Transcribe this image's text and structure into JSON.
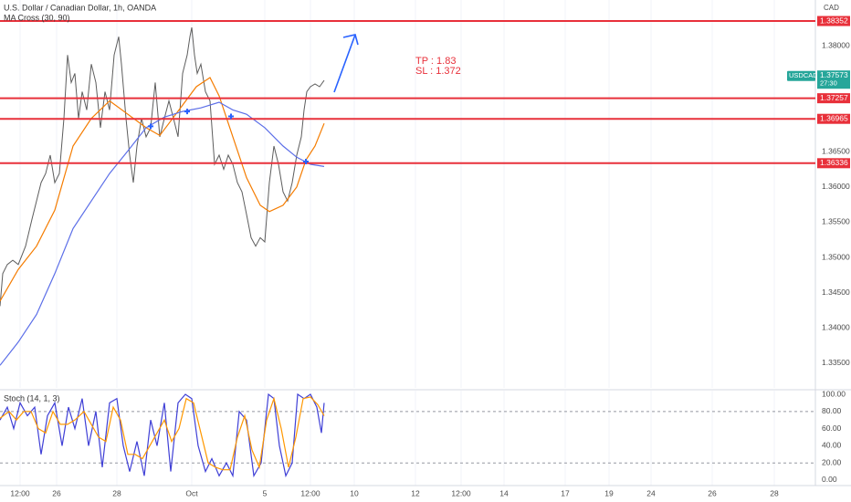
{
  "chart_data": [
    {
      "type": "line",
      "title": "U.S. Dollar / Canadian Dollar, 1h, OANDA",
      "subtitle": "MA Cross (30, 90)",
      "currency": "CAD",
      "symbol": "USDCAD",
      "last_price": 1.37573,
      "countdown": "27:30",
      "annotations": [
        "TP : 1.83",
        "SL : 1.372"
      ],
      "grid": true,
      "xlim": [
        0,
        893
      ],
      "ylim": [
        1.3315,
        1.3865
      ],
      "yticks": [
        {
          "value": 1.38,
          "label": "1.38000"
        },
        {
          "value": 1.365,
          "label": "1.36500"
        },
        {
          "value": 1.36,
          "label": "1.36000"
        },
        {
          "value": 1.355,
          "label": "1.35500"
        },
        {
          "value": 1.35,
          "label": "1.35000"
        },
        {
          "value": 1.345,
          "label": "1.34500"
        },
        {
          "value": 1.34,
          "label": "1.34000"
        },
        {
          "value": 1.335,
          "label": "1.33500"
        }
      ],
      "xticks": [
        {
          "value": 22,
          "label": "12:00"
        },
        {
          "value": 62,
          "label": "26"
        },
        {
          "value": 128,
          "label": "28"
        },
        {
          "value": 210,
          "label": "Oct"
        },
        {
          "value": 290,
          "label": "5"
        },
        {
          "value": 340,
          "label": "12:00"
        },
        {
          "value": 388,
          "label": "10"
        },
        {
          "value": 455,
          "label": "12"
        },
        {
          "value": 505,
          "label": "12:00"
        },
        {
          "value": 552,
          "label": "14"
        },
        {
          "value": 619,
          "label": "17"
        },
        {
          "value": 667,
          "label": "19"
        },
        {
          "value": 713,
          "label": "24"
        },
        {
          "value": 780,
          "label": "26"
        },
        {
          "value": 848,
          "label": "28"
        }
      ],
      "levels": {
        "color": "#e8303a",
        "values": [
          1.38352,
          1.37257,
          1.36965,
          1.36336
        ]
      },
      "series": [
        {
          "color": "#5d5d5d",
          "x": [
            0,
            3,
            8,
            14,
            20,
            28,
            35,
            40,
            45,
            50,
            55,
            60,
            65,
            70,
            74,
            78,
            82,
            86,
            90,
            95,
            100,
            105,
            110,
            115,
            120,
            125,
            130,
            133,
            138,
            142,
            146,
            150,
            155,
            160,
            165,
            170,
            175,
            180,
            185,
            190,
            195,
            200,
            205,
            208,
            210,
            213,
            216,
            220,
            225,
            230,
            235,
            240,
            245,
            250,
            255,
            260,
            265,
            270,
            275,
            280,
            285,
            290,
            295,
            300,
            305,
            310,
            315,
            320,
            325,
            330,
            333,
            336,
            340,
            345,
            350,
            355
          ],
          "values": [
            1.3431,
            1.3477,
            1.349,
            1.3496,
            1.349,
            1.3516,
            1.3554,
            1.358,
            1.3606,
            1.3619,
            1.3645,
            1.3606,
            1.3619,
            1.3697,
            1.3787,
            1.3748,
            1.3761,
            1.3697,
            1.3735,
            1.3709,
            1.3774,
            1.3748,
            1.3684,
            1.3735,
            1.3709,
            1.3787,
            1.3813,
            1.3774,
            1.3697,
            1.3645,
            1.3606,
            1.3658,
            1.3697,
            1.3671,
            1.3684,
            1.3748,
            1.3671,
            1.3697,
            1.3722,
            1.3697,
            1.3671,
            1.3761,
            1.3787,
            1.3813,
            1.3826,
            1.3787,
            1.3761,
            1.3774,
            1.3735,
            1.3722,
            1.3632,
            1.3645,
            1.3625,
            1.3645,
            1.3632,
            1.3606,
            1.3593,
            1.3561,
            1.3528,
            1.3516,
            1.3528,
            1.3522,
            1.3606,
            1.3658,
            1.3632,
            1.3593,
            1.358,
            1.3606,
            1.3645,
            1.3671,
            1.3709,
            1.3735,
            1.3742,
            1.3746,
            1.3742,
            1.3751
          ]
        },
        {
          "color": "#f57c00",
          "x": [
            0,
            20,
            40,
            60,
            80,
            100,
            120,
            140,
            160,
            175,
            185,
            200,
            215,
            230,
            240,
            255,
            270,
            285,
            295,
            310,
            325,
            335,
            345,
            355
          ],
          "values": [
            1.3438,
            1.3483,
            1.3516,
            1.3567,
            1.3658,
            1.3697,
            1.3722,
            1.3703,
            1.3684,
            1.3673,
            1.369,
            1.3716,
            1.3742,
            1.3755,
            1.3729,
            1.3671,
            1.3613,
            1.3574,
            1.3565,
            1.3574,
            1.36,
            1.3638,
            1.3658,
            1.369
          ]
        },
        {
          "color": "#5b6ee8",
          "x": [
            0,
            20,
            40,
            60,
            80,
            100,
            120,
            140,
            160,
            180,
            200,
            220,
            240,
            255,
            270,
            290,
            310,
            325,
            340,
            355
          ],
          "values": [
            1.3347,
            1.338,
            1.3419,
            1.3477,
            1.3541,
            1.358,
            1.3619,
            1.3651,
            1.3684,
            1.3699,
            1.3707,
            1.3712,
            1.372,
            1.3709,
            1.3703,
            1.3684,
            1.3658,
            1.3642,
            1.3632,
            1.3629
          ]
        }
      ],
      "crosses": {
        "color": "#2962ff",
        "x": [
          165,
          205,
          253,
          335
        ],
        "values": [
          1.3686,
          1.3707,
          1.37,
          1.3636
        ]
      }
    },
    {
      "type": "line",
      "title": "Stoch (14, 1, 3)",
      "grid": true,
      "xlim": [
        0,
        893
      ],
      "ylim": [
        -6.4,
        104.3
      ],
      "yticks": [
        {
          "value": 100,
          "label": "100.00"
        },
        {
          "value": 80,
          "label": "80.00"
        },
        {
          "value": 60,
          "label": "60.00"
        },
        {
          "value": 40,
          "label": "40.00"
        },
        {
          "value": 20,
          "label": "20.00"
        },
        {
          "value": 0,
          "label": "0.00"
        }
      ],
      "bands": [
        80,
        20
      ],
      "series": [
        {
          "color": "#3f3fd6",
          "x": [
            0,
            8,
            15,
            22,
            30,
            38,
            45,
            52,
            60,
            68,
            75,
            82,
            90,
            97,
            105,
            112,
            120,
            128,
            135,
            142,
            150,
            158,
            165,
            172,
            180,
            187,
            195,
            203,
            210,
            217,
            225,
            232,
            240,
            248,
            255,
            262,
            270,
            278,
            286,
            294,
            300,
            306,
            313,
            320,
            326,
            333,
            340,
            347,
            352,
            355
          ],
          "values": [
            70,
            85,
            60,
            90,
            75,
            85,
            30,
            75,
            90,
            40,
            85,
            60,
            95,
            40,
            80,
            15,
            90,
            95,
            40,
            10,
            45,
            5,
            70,
            40,
            90,
            10,
            90,
            100,
            95,
            40,
            10,
            25,
            5,
            20,
            5,
            80,
            70,
            5,
            20,
            100,
            95,
            40,
            5,
            20,
            100,
            95,
            100,
            85,
            55,
            90
          ]
        },
        {
          "color": "#ff9800",
          "x": [
            0,
            10,
            18,
            26,
            34,
            42,
            50,
            58,
            66,
            74,
            82,
            92,
            100,
            108,
            116,
            124,
            132,
            140,
            148,
            156,
            164,
            172,
            180,
            188,
            196,
            204,
            212,
            220,
            228,
            236,
            244,
            252,
            260,
            268,
            276,
            284,
            292,
            300,
            308,
            316,
            324,
            332,
            340,
            348,
            355
          ],
          "values": [
            72,
            80,
            70,
            80,
            80,
            60,
            55,
            80,
            65,
            65,
            70,
            80,
            65,
            50,
            45,
            85,
            70,
            30,
            30,
            25,
            40,
            55,
            70,
            45,
            60,
            95,
            90,
            55,
            20,
            15,
            12,
            12,
            50,
            75,
            35,
            15,
            70,
            95,
            60,
            15,
            50,
            95,
            97,
            88,
            75
          ]
        }
      ]
    }
  ]
}
